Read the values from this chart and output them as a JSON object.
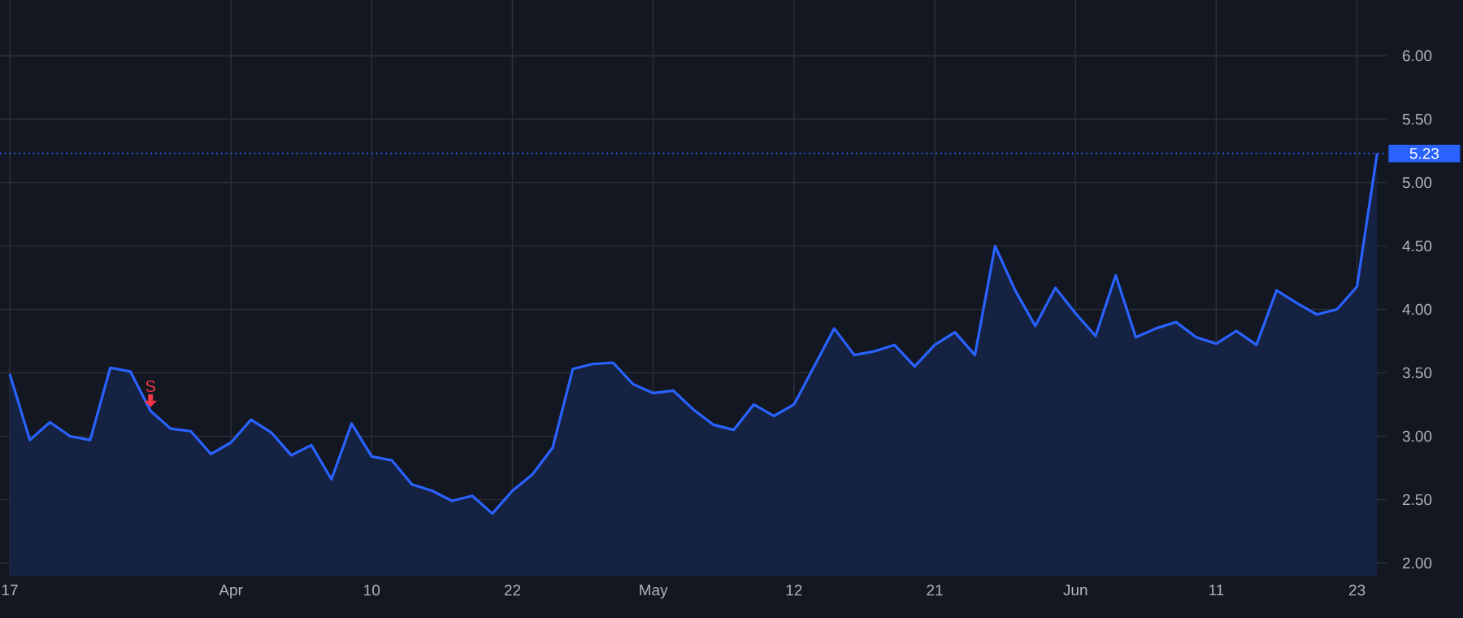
{
  "chart_data": {
    "type": "area",
    "categories": [
      "17",
      null,
      null,
      null,
      null,
      null,
      null,
      null,
      null,
      null,
      null,
      "Apr",
      null,
      null,
      null,
      null,
      null,
      null,
      "10",
      null,
      null,
      null,
      null,
      null,
      null,
      "22",
      null,
      null,
      null,
      null,
      null,
      null,
      "May",
      null,
      null,
      null,
      null,
      null,
      null,
      "12",
      null,
      null,
      null,
      null,
      null,
      null,
      "21",
      null,
      null,
      null,
      null,
      null,
      null,
      "Jun",
      null,
      null,
      null,
      null,
      null,
      null,
      "11",
      null,
      null,
      null,
      null,
      null,
      null,
      "23",
      null
    ],
    "series": [
      {
        "color": "#2962ff",
        "values": [
          3.49,
          2.97,
          3.11,
          3.0,
          2.97,
          3.54,
          3.51,
          3.2,
          3.06,
          3.04,
          2.86,
          2.95,
          3.13,
          3.03,
          2.85,
          2.93,
          2.66,
          3.1,
          2.84,
          2.81,
          2.62,
          2.57,
          2.49,
          2.53,
          2.39,
          2.57,
          2.7,
          2.91,
          3.53,
          3.57,
          3.58,
          3.41,
          3.34,
          3.36,
          3.21,
          3.09,
          3.05,
          3.25,
          3.16,
          3.25,
          3.55,
          3.85,
          3.64,
          3.67,
          3.72,
          3.55,
          3.72,
          3.82,
          3.64,
          4.5,
          4.15,
          3.87,
          4.17,
          3.97,
          3.79,
          4.27,
          3.78,
          3.85,
          3.9,
          3.78,
          3.73,
          3.83,
          3.72,
          4.15,
          4.05,
          3.96,
          4.0,
          4.18,
          5.23
        ]
      }
    ],
    "ylim": [
      1.9,
      6.44
    ],
    "yticks": [
      {
        "value": 2,
        "label": "2.00"
      },
      {
        "value": 2.5,
        "label": "2.50"
      },
      {
        "value": 3,
        "label": "3.00"
      },
      {
        "value": 3.5,
        "label": "3.50"
      },
      {
        "value": 4,
        "label": "4.00"
      },
      {
        "value": 4.5,
        "label": "4.50"
      },
      {
        "value": 5,
        "label": "5.00"
      },
      {
        "value": 5.5,
        "label": "5.50"
      },
      {
        "value": 6,
        "label": "6.00"
      }
    ],
    "ref_lines": [
      {
        "axis": "y",
        "value": 5.23,
        "label": "5.23",
        "color": "#2962ff",
        "line_style": "dotted"
      }
    ],
    "annotations": [
      {
        "text": "S",
        "y": 3.2
      }
    ],
    "grid": true,
    "marker": "none",
    "line_style": "solid"
  }
}
